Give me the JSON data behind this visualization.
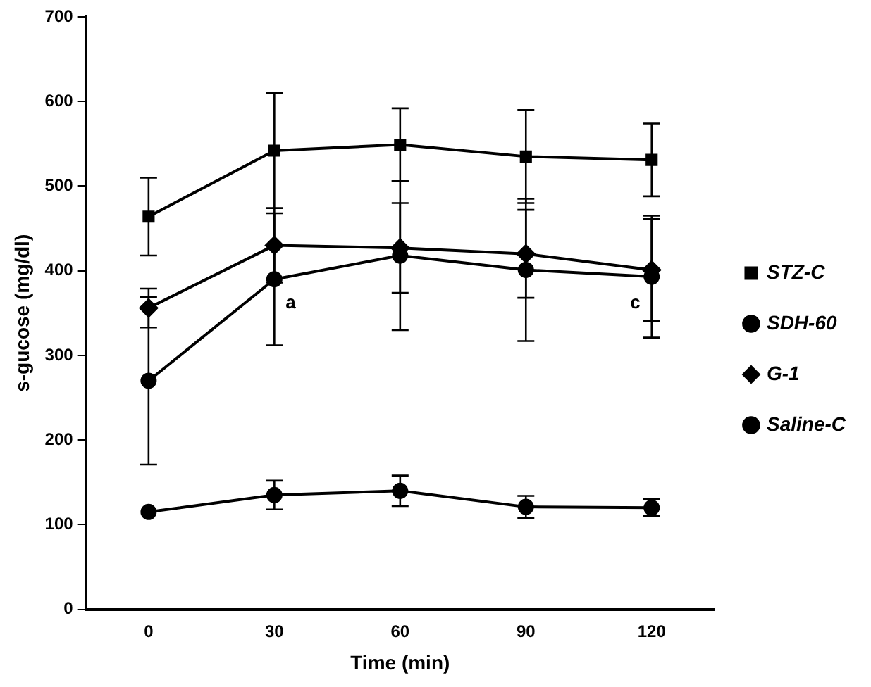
{
  "chart_data": {
    "type": "line",
    "xlabel": "Time (min)",
    "ylabel": "s-gucose (mg/dl)",
    "x": [
      0,
      30,
      60,
      90,
      120
    ],
    "xlim": [
      -15,
      135
    ],
    "xticks": [
      0,
      30,
      60,
      90,
      120
    ],
    "ylim": [
      0,
      700
    ],
    "yticks": [
      0,
      100,
      200,
      300,
      400,
      500,
      600,
      700
    ],
    "grid": false,
    "legend": "right",
    "series": [
      {
        "name": "STZ-C",
        "color": "#000000",
        "marker": "square",
        "values": [
          464,
          542,
          549,
          535,
          531
        ],
        "errors": [
          46,
          68,
          43,
          55,
          43
        ]
      },
      {
        "name": "SDH-60",
        "color": "#000000",
        "marker": "circle",
        "values": [
          270,
          390,
          418,
          401,
          393
        ],
        "errors": [
          99,
          78,
          88,
          84,
          72
        ]
      },
      {
        "name": "G-1",
        "color": "#000000",
        "marker": "diamond",
        "values": [
          356,
          430,
          427,
          420,
          401
        ],
        "errors": [
          23,
          44,
          53,
          52,
          60
        ]
      },
      {
        "name": "Saline-C",
        "color": "#000000",
        "marker": "circle",
        "values": [
          115,
          135,
          140,
          121,
          120
        ],
        "errors": [
          null,
          17,
          18,
          13,
          10
        ]
      }
    ],
    "annotations": [
      {
        "text": "a",
        "x": 30,
        "y": 362
      },
      {
        "text": "c",
        "x": 120,
        "y": 362
      }
    ]
  }
}
